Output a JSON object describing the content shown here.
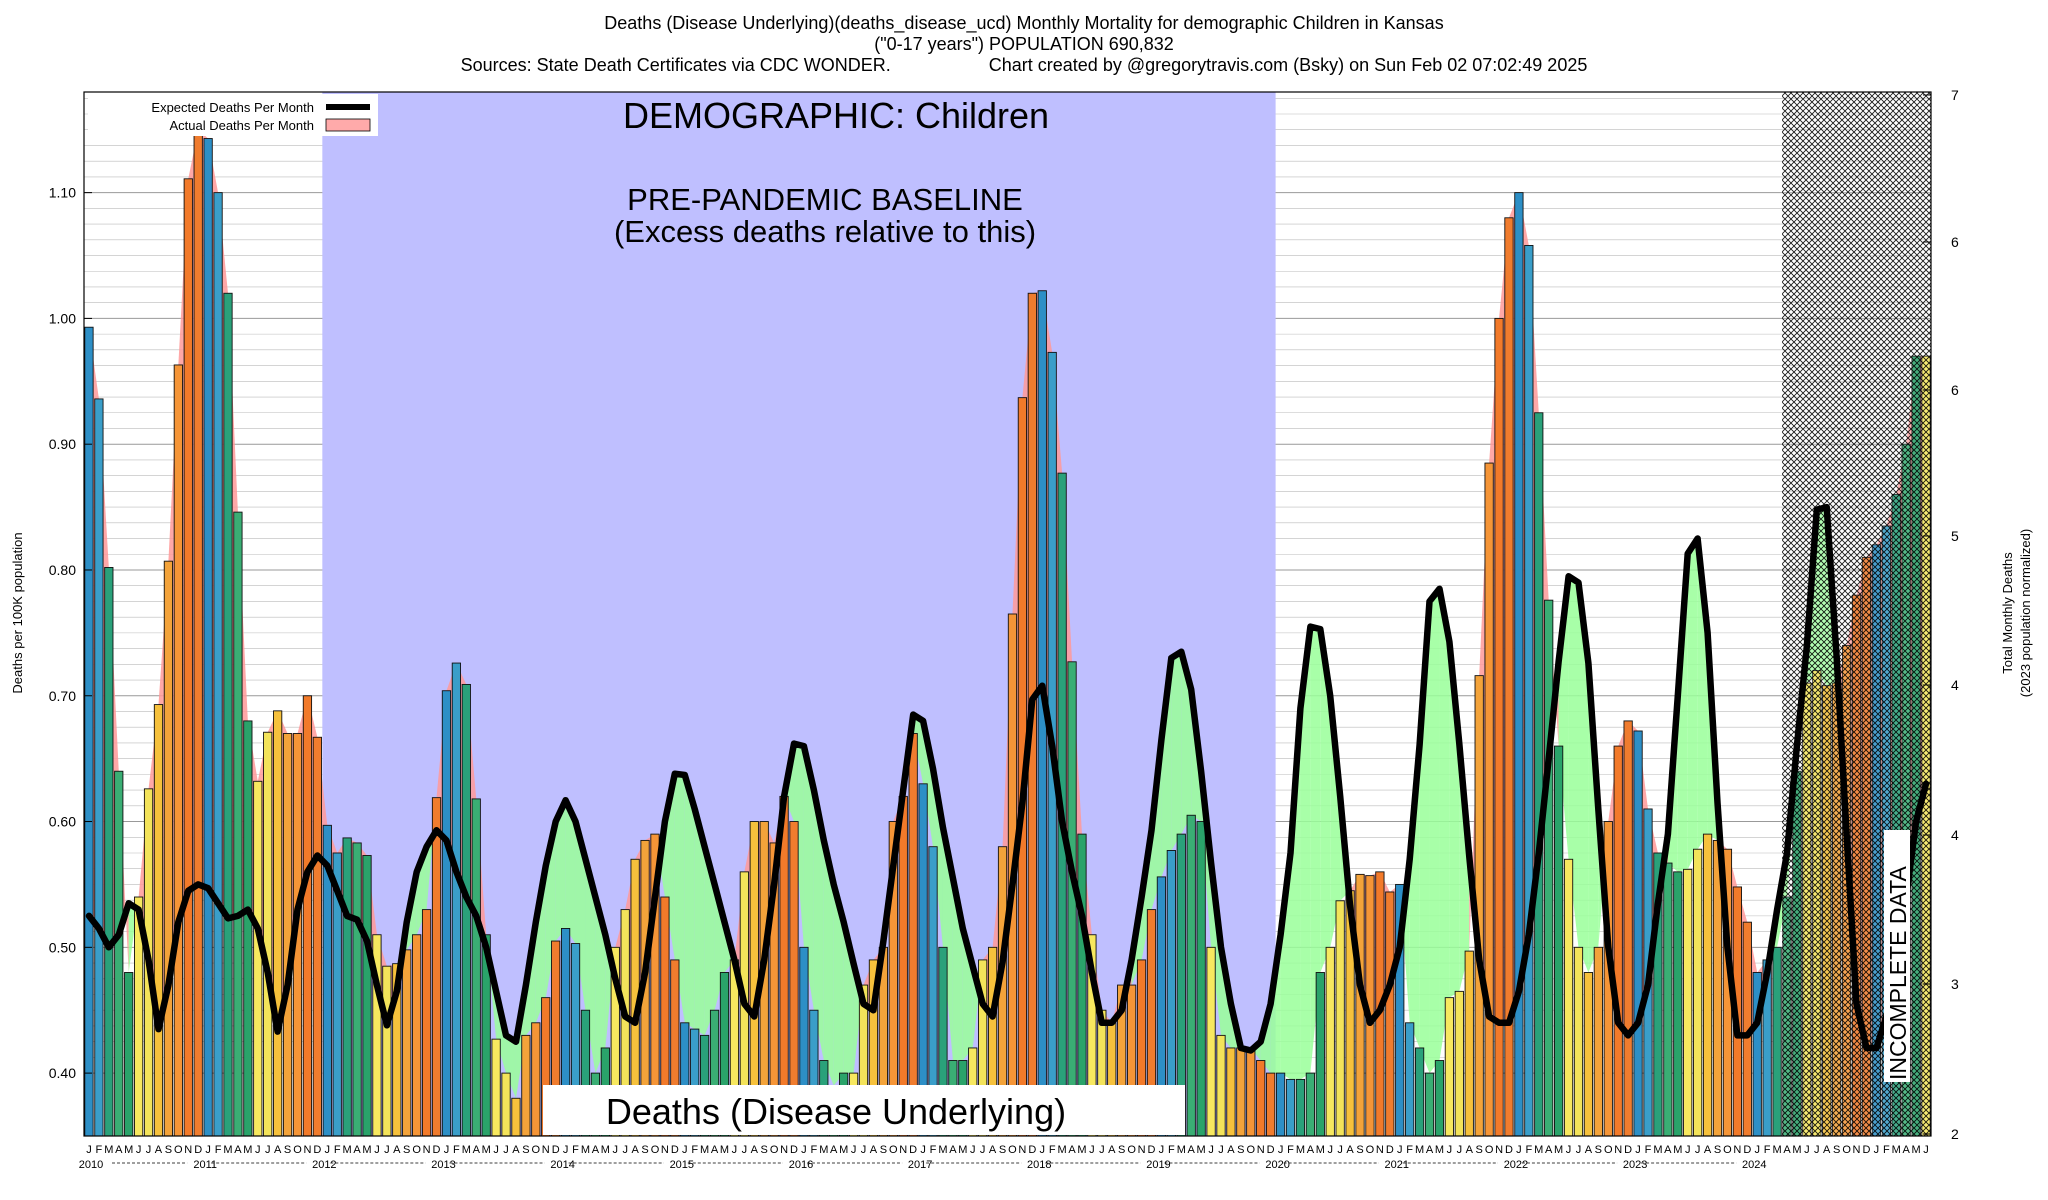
{
  "header": {
    "title_line1": "Deaths (Disease Underlying)(deaths_disease_ucd) Monthly Mortality for demographic Children in Kansas",
    "title_line2": "(\"0-17 years\") POPULATION 690,832",
    "title_line3a": "Sources: State Death Certificates via CDC WONDER.",
    "title_line3b": "Chart created by @gregorytravis.com (Bsky) on Sun Feb 02 07:02:49 2025"
  },
  "legend": {
    "expected": "Expected Deaths Per Month",
    "actual": "Actual Deaths Per Month"
  },
  "annotations": {
    "demographic": "DEMOGRAPHIC: Children",
    "baseline_line1": "PRE-PANDEMIC BASELINE",
    "baseline_line2": "(Excess deaths relative to this)",
    "bottom_label": "Deaths (Disease Underlying)",
    "incomplete": "INCOMPLETE DATA"
  },
  "axes": {
    "ylabel_left": "Deaths per 100K population",
    "ylabel_right_line1": "Total Monthly Deaths",
    "ylabel_right_line2": "(2023 population normalized)"
  },
  "colors": {
    "baseline_region": "#bfbfff",
    "excess_fill": "#ff9999",
    "deficit_fill": "#99ff99",
    "expected_line": "#000000",
    "grid": "#bbbbbb"
  },
  "chart_data": {
    "type": "bar",
    "title": "Deaths (Disease Underlying)(deaths_disease_ucd) Monthly Mortality for demographic Children in Kansas",
    "ylim_left": [
      0.35,
      1.18
    ],
    "ylim_right": [
      2,
      7
    ],
    "yticks_left": [
      "0.40",
      "0.50",
      "0.60",
      "0.70",
      "0.80",
      "0.90",
      "1.00",
      "1.10"
    ],
    "yticks_right": [
      "2",
      "3",
      "4",
      "4",
      "5",
      "6",
      "6",
      "7"
    ],
    "years": [
      "2010",
      "2011",
      "2012",
      "2013",
      "2014",
      "2015",
      "2016",
      "2017",
      "2018",
      "2019",
      "2020",
      "2021",
      "2022",
      "2023",
      "2024"
    ],
    "month_letters": [
      "J",
      "F",
      "M",
      "A",
      "M",
      "J",
      "J",
      "A",
      "S",
      "O",
      "N",
      "D"
    ],
    "baseline_range": [
      "2012-01",
      "2019-12"
    ],
    "incomplete_from": "2024-04",
    "series": [
      {
        "name": "Actual Deaths Per Month",
        "values": [
          0.993,
          0.936,
          0.802,
          0.64,
          0.48,
          0.54,
          0.626,
          0.693,
          0.807,
          0.963,
          1.111,
          1.15,
          1.143,
          1.1,
          1.02,
          0.846,
          0.68,
          0.632,
          0.671,
          0.688,
          0.67,
          0.67,
          0.7,
          0.667,
          0.597,
          0.575,
          0.587,
          0.583,
          0.573,
          0.51,
          0.485,
          0.487,
          0.498,
          0.51,
          0.53,
          0.619,
          0.704,
          0.726,
          0.709,
          0.618,
          0.51,
          0.427,
          0.4,
          0.38,
          0.43,
          0.44,
          0.46,
          0.505,
          0.515,
          0.503,
          0.45,
          0.4,
          0.42,
          0.5,
          0.53,
          0.57,
          0.585,
          0.59,
          0.54,
          0.49,
          0.44,
          0.435,
          0.43,
          0.45,
          0.48,
          0.49,
          0.56,
          0.6,
          0.6,
          0.583,
          0.62,
          0.6,
          0.5,
          0.45,
          0.41,
          0.39,
          0.4,
          0.4,
          0.47,
          0.49,
          0.5,
          0.6,
          0.62,
          0.67,
          0.63,
          0.58,
          0.5,
          0.41,
          0.41,
          0.42,
          0.49,
          0.5,
          0.58,
          0.765,
          0.937,
          1.02,
          1.022,
          0.973,
          0.877,
          0.727,
          0.59,
          0.51,
          0.45,
          0.44,
          0.47,
          0.47,
          0.49,
          0.53,
          0.556,
          0.577,
          0.59,
          0.605,
          0.6,
          0.5,
          0.43,
          0.42,
          0.42,
          0.42,
          0.41,
          0.4,
          0.4,
          0.395,
          0.395,
          0.4,
          0.48,
          0.5,
          0.537,
          0.545,
          0.558,
          0.557,
          0.56,
          0.544,
          0.55,
          0.44,
          0.42,
          0.4,
          0.41,
          0.46,
          0.465,
          0.497,
          0.716,
          0.885,
          1.0,
          1.08,
          1.1,
          1.058,
          0.925,
          0.776,
          0.66,
          0.57,
          0.5,
          0.48,
          0.5,
          0.6,
          0.66,
          0.68,
          0.672,
          0.61,
          0.575,
          0.567,
          0.56,
          0.562,
          0.578,
          0.59,
          0.585,
          0.578,
          0.548,
          0.52,
          0.48,
          0.49,
          0.5,
          0.54,
          0.64,
          0.71,
          0.72,
          0.708,
          0.71,
          0.74,
          0.78,
          0.81,
          0.82,
          0.835,
          0.86,
          0.9,
          0.97,
          0.97
        ]
      },
      {
        "name": "Expected Deaths Per Month",
        "values": [
          0.525,
          0.515,
          0.5,
          0.51,
          0.535,
          0.53,
          0.49,
          0.435,
          0.47,
          0.52,
          0.545,
          0.55,
          0.547,
          0.535,
          0.523,
          0.525,
          0.53,
          0.515,
          0.48,
          0.433,
          0.47,
          0.53,
          0.56,
          0.573,
          0.565,
          0.545,
          0.525,
          0.522,
          0.505,
          0.47,
          0.438,
          0.465,
          0.52,
          0.56,
          0.58,
          0.593,
          0.585,
          0.56,
          0.54,
          0.525,
          0.5,
          0.465,
          0.43,
          0.425,
          0.47,
          0.52,
          0.565,
          0.6,
          0.617,
          0.6,
          0.57,
          0.54,
          0.51,
          0.475,
          0.445,
          0.44,
          0.48,
          0.54,
          0.6,
          0.638,
          0.637,
          0.61,
          0.58,
          0.55,
          0.52,
          0.49,
          0.455,
          0.445,
          0.49,
          0.55,
          0.62,
          0.662,
          0.66,
          0.625,
          0.585,
          0.55,
          0.52,
          0.487,
          0.455,
          0.45,
          0.505,
          0.565,
          0.625,
          0.685,
          0.68,
          0.642,
          0.595,
          0.555,
          0.515,
          0.485,
          0.455,
          0.445,
          0.488,
          0.55,
          0.615,
          0.697,
          0.708,
          0.66,
          0.6,
          0.56,
          0.525,
          0.48,
          0.44,
          0.44,
          0.45,
          0.49,
          0.54,
          0.593,
          0.665,
          0.73,
          0.735,
          0.705,
          0.64,
          0.567,
          0.5,
          0.455,
          0.42,
          0.418,
          0.425,
          0.455,
          0.51,
          0.575,
          0.69,
          0.755,
          0.753,
          0.7,
          0.62,
          0.533,
          0.47,
          0.44,
          0.45,
          0.47,
          0.5,
          0.57,
          0.661,
          0.775,
          0.785,
          0.743,
          0.662,
          0.572,
          0.49,
          0.445,
          0.44,
          0.44,
          0.465,
          0.51,
          0.575,
          0.65,
          0.727,
          0.795,
          0.79,
          0.726,
          0.61,
          0.5,
          0.44,
          0.43,
          0.44,
          0.47,
          0.535,
          0.59,
          0.7,
          0.813,
          0.825,
          0.75,
          0.615,
          0.5,
          0.43,
          0.43,
          0.44,
          0.48,
          0.53,
          0.575,
          0.66,
          0.74,
          0.848,
          0.85,
          0.73,
          0.59,
          0.455,
          0.42,
          0.42,
          0.445,
          0.47,
          0.54,
          0.6,
          0.63,
          0.66
        ]
      }
    ]
  }
}
